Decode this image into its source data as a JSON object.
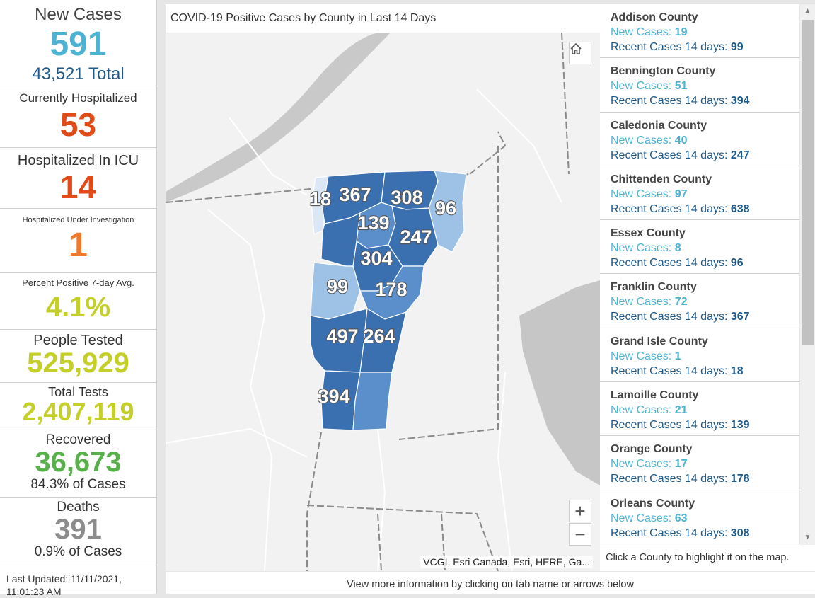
{
  "stats": {
    "new_cases": {
      "label": "New Cases",
      "value": "591",
      "sub": "43,521 Total"
    },
    "hospitalized": {
      "label": "Currently Hospitalized",
      "value": "53"
    },
    "icu": {
      "label": "Hospitalized In ICU",
      "value": "14"
    },
    "investigation": {
      "label": "Hospitalized Under Investigation",
      "value": "1"
    },
    "percent_positive": {
      "label": "Percent Positive 7-day Avg.",
      "value": "4.1%"
    },
    "people_tested": {
      "label": "People Tested",
      "value": "525,929"
    },
    "total_tests": {
      "label": "Total Tests",
      "value": "2,407,119"
    },
    "recovered": {
      "label": "Recovered",
      "value": "36,673",
      "sub": "84.3% of Cases"
    },
    "deaths": {
      "label": "Deaths",
      "value": "391",
      "sub": "0.9% of Cases"
    },
    "updated": {
      "label": "Last Updated: 11/11/2021, 11:01:23 AM"
    }
  },
  "map": {
    "title": "COVID-19 Positive Cases by County in Last 14 Days",
    "attribution": "VCGI, Esri Canada, Esri, HERE, Ga...",
    "zoom_in_label": "+",
    "zoom_out_label": "−",
    "labels": [
      "18",
      "367",
      "308",
      "96",
      "139",
      "247",
      "304",
      "99",
      "178",
      "497",
      "264",
      "394"
    ],
    "colors": {
      "high": "#3a6fb0",
      "mid": "#5b8fcc",
      "low": "#9ec2e6",
      "lowest": "#dbe7f5"
    }
  },
  "county_list": {
    "new_prefix": "New Cases: ",
    "recent_prefix": "Recent Cases 14 days: ",
    "items": [
      {
        "name": "Addison County",
        "new": "19",
        "recent": "99"
      },
      {
        "name": "Bennington County",
        "new": "51",
        "recent": "394"
      },
      {
        "name": "Caledonia County",
        "new": "40",
        "recent": "247"
      },
      {
        "name": "Chittenden County",
        "new": "97",
        "recent": "638"
      },
      {
        "name": "Essex County",
        "new": "8",
        "recent": "96"
      },
      {
        "name": "Franklin County",
        "new": "72",
        "recent": "367"
      },
      {
        "name": "Grand Isle County",
        "new": "1",
        "recent": "18"
      },
      {
        "name": "Lamoille County",
        "new": "21",
        "recent": "139"
      },
      {
        "name": "Orange County",
        "new": "17",
        "recent": "178"
      },
      {
        "name": "Orleans County",
        "new": "63",
        "recent": "308"
      }
    ],
    "hint": "Click a County to highlight it on the map."
  },
  "footer": "View more information by clicking on tab name or arrows below"
}
